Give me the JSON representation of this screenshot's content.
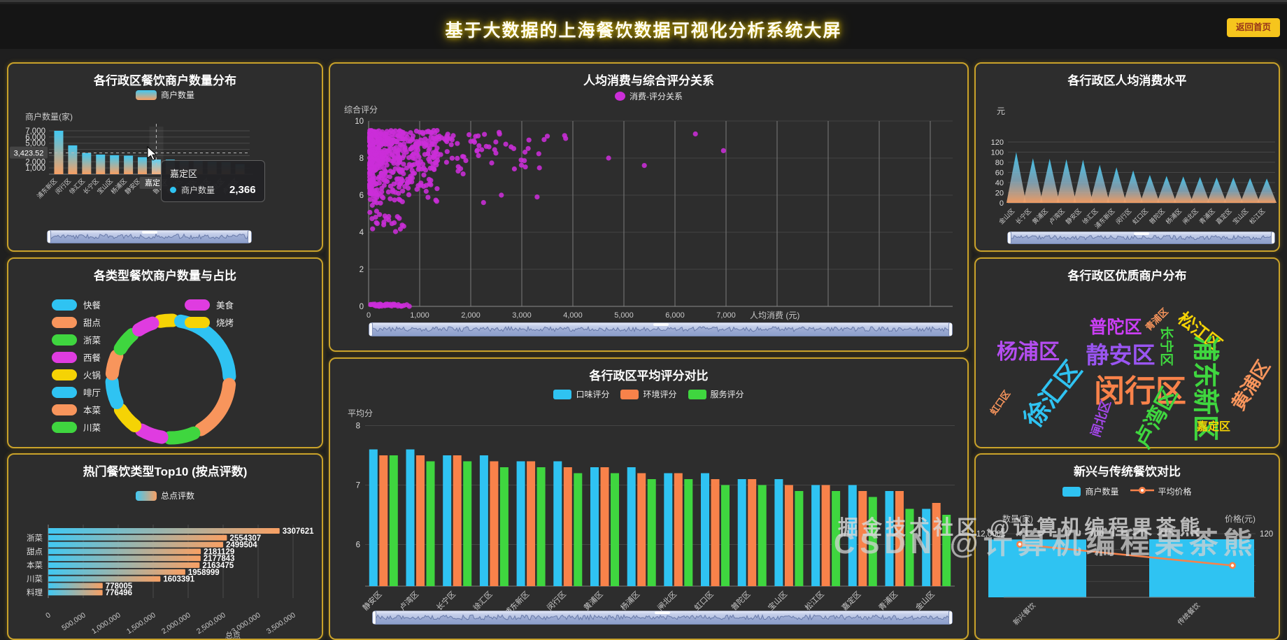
{
  "header": {
    "title": "基于大数据的上海餐饮数据可视化分析系统大屏",
    "back_button": "返回首页"
  },
  "watermark": {
    "line1": "掘金技术社区 @计算机编程果茶熊",
    "line2": "CSDN @计算机编程果茶熊"
  },
  "colors": {
    "panel_border": "#c9a22a",
    "panel_bg": "#2d2d2d",
    "cyan": "#2fc3f2",
    "orange": "#f8824a",
    "soft_orange": "#f8a064",
    "green": "#3fd63f",
    "magenta": "#df3ce0",
    "yellow": "#f5d305",
    "scatter_magenta": "#cb2ed8",
    "bar_gradient_top": "#41c8f2",
    "bar_gradient_bottom": "#f8a064",
    "axis_text": "#c9c9c9",
    "grid_line": "#4a4a4a"
  },
  "chart_data": [
    {
      "id": "district_count",
      "type": "bar",
      "title": "各行政区餐饮商户数量分布",
      "legend": [
        {
          "label": "商户数量",
          "marker": "gradient"
        }
      ],
      "ylabel": "商户数量(家)",
      "ylim": [
        0,
        7000
      ],
      "yticks": [
        1000,
        2000,
        5000,
        6000,
        7000
      ],
      "categories": [
        "浦东新区",
        "闵行区",
        "徐汇区",
        "长宁区",
        "宝山区",
        "杨浦区",
        "静安区",
        "嘉定区",
        "普陀区",
        "黄浦区",
        "虹口区",
        "松江区",
        "闸北区",
        "卢湾区"
      ],
      "values": [
        7004,
        4650,
        3430,
        3160,
        3060,
        2990,
        2750,
        2366,
        2340,
        2240,
        2140,
        2050,
        1940,
        1620
      ],
      "highlight_index": 7,
      "axis_pointer_value": "3,423.52",
      "axis_pointer_numeric": 3423.52,
      "tooltip": {
        "title": "嘉定区",
        "series": "商户数量",
        "value": "2,366"
      }
    },
    {
      "id": "type_donut",
      "type": "pie",
      "title": "各类型餐饮商户数量与占比",
      "legend": [
        {
          "label": "快餐",
          "color": "#2fc3f2"
        },
        {
          "label": "美食",
          "color": "#df3ce0"
        },
        {
          "label": "甜点",
          "color": "#f8955c"
        },
        {
          "label": "烧烤",
          "color": "#f5d305"
        },
        {
          "label": "浙菜",
          "color": "#3fd63f"
        },
        {
          "label": "西餐",
          "color": "#df3ce0"
        },
        {
          "label": "火锅",
          "color": "#f5d305"
        },
        {
          "label": "啡厅",
          "color": "#2fc3f2"
        },
        {
          "label": "本菜",
          "color": "#f8955c"
        },
        {
          "label": "川菜",
          "color": "#3fd63f"
        }
      ],
      "segments": [
        {
          "name": "烧烤",
          "color": "#f5d305",
          "share": 4
        },
        {
          "name": "快餐",
          "color": "#2fc3f2",
          "share": 26
        },
        {
          "name": "甜点",
          "color": "#f8955c",
          "share": 18
        },
        {
          "name": "川菜",
          "color": "#3fd63f",
          "share": 8
        },
        {
          "name": "西餐",
          "color": "#df3ce0",
          "share": 7
        },
        {
          "name": "火锅",
          "color": "#f5d305",
          "share": 7
        },
        {
          "name": "啡厅",
          "color": "#2fc3f2",
          "share": 7
        },
        {
          "name": "本菜",
          "color": "#f8955c",
          "share": 6
        },
        {
          "name": "浙菜",
          "color": "#3fd63f",
          "share": 6
        },
        {
          "name": "美食",
          "color": "#df3ce0",
          "share": 5
        }
      ]
    },
    {
      "id": "top10",
      "type": "bar-horizontal",
      "title": "热门餐饮类型Top10 (按点评数)",
      "legend": [
        {
          "label": "总点评数",
          "marker": "gradient-h"
        }
      ],
      "values": [
        3307621,
        2554307,
        2499504,
        2181129,
        2177843,
        2163475,
        1958999,
        1603391,
        778005,
        776496
      ],
      "category_labels_visible": [
        "",
        "浙菜",
        "",
        "甜点",
        "",
        "本菜",
        "",
        "川菜",
        "",
        "料理"
      ],
      "xticks": [
        "0",
        "500,000",
        "1,000,000",
        "1,500,000",
        "2,000,000",
        "2,500,000",
        "3,000,000",
        "3,500,000"
      ],
      "xaxis_name": "总点"
    },
    {
      "id": "scatter",
      "type": "scatter",
      "title": "人均消费与综合评分关系",
      "legend": [
        {
          "label": "消费-评分关系",
          "color": "#cb2ed8",
          "marker": "dot"
        }
      ],
      "xlabel": "人均消费 (元)",
      "ylabel": "综合评分",
      "xlim": [
        0,
        7000
      ],
      "ylim": [
        0,
        10
      ],
      "xticks": [
        "0",
        "1,000",
        "2,000",
        "3,000",
        "4,000",
        "5,000",
        "6,000",
        "7,000"
      ],
      "yticks": [
        0,
        2,
        4,
        6,
        8,
        10
      ],
      "clusters": [
        {
          "n": 520,
          "x": [
            20,
            1350
          ],
          "y": [
            5.2,
            9.5
          ],
          "xbias": 2.2,
          "ybias": 0.5
        },
        {
          "n": 60,
          "x": [
            1200,
            2700
          ],
          "y": [
            6.6,
            9.4
          ],
          "xbias": 1.3,
          "ybias": 0.55
        },
        {
          "n": 16,
          "x": [
            2600,
            3900
          ],
          "y": [
            7.0,
            9.3
          ],
          "xbias": 1.0,
          "ybias": 0.6
        },
        {
          "n": 22,
          "x": [
            20,
            700
          ],
          "y": [
            4.0,
            5.3
          ],
          "xbias": 1.5,
          "ybias": 1.0
        },
        {
          "n": 40,
          "x": [
            20,
            820
          ],
          "y": [
            0,
            0.12
          ],
          "xbias": 1.0,
          "ybias": 1.0
        }
      ],
      "outliers": [
        [
          6400,
          9.3
        ],
        [
          6950,
          8.4
        ],
        [
          5400,
          7.6
        ],
        [
          4700,
          8.0
        ],
        [
          2250,
          5.6
        ],
        [
          2600,
          6.0
        ],
        [
          3300,
          5.9
        ]
      ]
    },
    {
      "id": "avg_scores",
      "type": "bar",
      "title": "各行政区平均评分对比",
      "ylabel": "平均分",
      "yticks": [
        6,
        7,
        8
      ],
      "categories": [
        "静安区",
        "卢湾区",
        "长宁区",
        "徐汇区",
        "浦东新区",
        "闵行区",
        "黄浦区",
        "杨浦区",
        "闸北区",
        "虹口区",
        "普陀区",
        "宝山区",
        "松江区",
        "嘉定区",
        "青浦区",
        "金山区"
      ],
      "series": [
        {
          "name": "口味评分",
          "color": "#2fc3f2",
          "values": [
            7.6,
            7.6,
            7.5,
            7.5,
            7.4,
            7.4,
            7.3,
            7.3,
            7.2,
            7.2,
            7.1,
            7.1,
            7.0,
            7.0,
            6.9,
            6.6
          ]
        },
        {
          "name": "环境评分",
          "color": "#f8824a",
          "values": [
            7.5,
            7.5,
            7.5,
            7.4,
            7.4,
            7.3,
            7.3,
            7.2,
            7.2,
            7.1,
            7.1,
            7.0,
            7.0,
            6.9,
            6.9,
            6.7
          ]
        },
        {
          "name": "服务评分",
          "color": "#3fd63f",
          "values": [
            7.5,
            7.4,
            7.4,
            7.3,
            7.3,
            7.2,
            7.2,
            7.1,
            7.1,
            7.0,
            7.0,
            6.9,
            6.9,
            6.8,
            6.6,
            6.5
          ]
        }
      ]
    },
    {
      "id": "consumption",
      "type": "area-peaks",
      "title": "各行政区人均消费水平",
      "ylabel": "元",
      "yticks": [
        0,
        20,
        40,
        60,
        80,
        100,
        120
      ],
      "categories": [
        "金山区",
        "长宁区",
        "黄浦区",
        "卢湾区",
        "静安区",
        "徐汇区",
        "浦东新区",
        "闵行区",
        "虹口区",
        "普陀区",
        "杨浦区",
        "闸北区",
        "青浦区",
        "嘉定区",
        "宝山区",
        "松江区"
      ],
      "values": [
        100,
        88,
        87,
        86,
        85,
        75,
        70,
        64,
        55,
        53,
        52,
        51,
        50,
        50,
        49,
        48
      ]
    },
    {
      "id": "quality_wordcloud",
      "type": "wordcloud",
      "title": "各行政区优质商户分布",
      "words": [
        {
          "text": "杨浦区",
          "size": 30,
          "color": "#b44df0",
          "rotate": 0,
          "x": 75,
          "y": 130
        },
        {
          "text": "普陀区",
          "size": 25,
          "color": "#cb3ef5",
          "rotate": 0,
          "x": 200,
          "y": 96
        },
        {
          "text": "青浦区",
          "size": 13,
          "color": "#f8955c",
          "rotate": -45,
          "x": 258,
          "y": 86
        },
        {
          "text": "长宁区",
          "size": 19,
          "color": "#3fd63f",
          "rotate": 90,
          "x": 274,
          "y": 125
        },
        {
          "text": "松江区",
          "size": 24,
          "color": "#f5d305",
          "rotate": 38,
          "x": 322,
          "y": 102
        },
        {
          "text": "静安区",
          "size": 33,
          "color": "#9a55f2",
          "rotate": 0,
          "x": 207,
          "y": 135
        },
        {
          "text": "闵行区",
          "size": 44,
          "color": "#f8824a",
          "rotate": 0,
          "x": 235,
          "y": 185
        },
        {
          "text": "浦东新区",
          "size": 38,
          "color": "#3fd63f",
          "rotate": 90,
          "x": 332,
          "y": 185
        },
        {
          "text": "黄浦区",
          "size": 26,
          "color": "#f8955c",
          "rotate": -58,
          "x": 392,
          "y": 180
        },
        {
          "text": "徐汇区",
          "size": 36,
          "color": "#2fc3f2",
          "rotate": -52,
          "x": 108,
          "y": 192
        },
        {
          "text": "虹口区",
          "size": 13,
          "color": "#f8955c",
          "rotate": -55,
          "x": 34,
          "y": 205
        },
        {
          "text": "闸北区",
          "size": 18,
          "color": "#a347e8",
          "rotate": -72,
          "x": 178,
          "y": 228
        },
        {
          "text": "卢湾区",
          "size": 31,
          "color": "#3fd63f",
          "rotate": -62,
          "x": 255,
          "y": 226
        },
        {
          "text": "嘉定区",
          "size": 16,
          "color": "#f5d305",
          "rotate": 0,
          "x": 340,
          "y": 238
        }
      ]
    },
    {
      "id": "new_vs_trad",
      "type": "bar-line",
      "title": "新兴与传统餐饮对比",
      "legend": [
        {
          "label": "商户数量",
          "color": "#2fc3f2",
          "marker": "rect"
        },
        {
          "label": "平均价格",
          "color": "#f8824a",
          "marker": "line-dot"
        }
      ],
      "ylabel_left": "数量(家)",
      "ylabel_right": "价格(元)",
      "yticks_left": [
        "12,000"
      ],
      "yticks_right": [
        "120"
      ],
      "ylim_left": [
        0,
        12000
      ],
      "ylim_right": [
        0,
        120
      ],
      "categories": [
        "新兴餐饮",
        "传统餐饮"
      ],
      "bar_values": [
        10900,
        10950
      ],
      "line_values": [
        100,
        60
      ]
    }
  ]
}
